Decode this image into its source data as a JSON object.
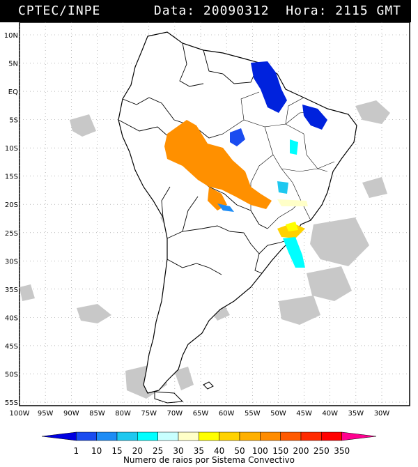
{
  "header": {
    "title": "CPTEC/INPE",
    "meta": "Data: 20090312  Hora: 2115 GMT"
  },
  "map": {
    "lat_labels": [
      "10N",
      "5N",
      "EQ",
      "5S",
      "10S",
      "15S",
      "20S",
      "25S",
      "30S",
      "35S",
      "40S",
      "45S",
      "50S",
      "55S"
    ],
    "lon_labels": [
      "100W",
      "95W",
      "90W",
      "85W",
      "80W",
      "75W",
      "70W",
      "65W",
      "60W",
      "55W",
      "50W",
      "45W",
      "40W",
      "35W",
      "30W"
    ],
    "land_color": "#ffffff",
    "cloud_color": "#c8c8c8"
  },
  "legend": {
    "values": [
      "1",
      "10",
      "15",
      "20",
      "25",
      "30",
      "35",
      "40",
      "50",
      "100",
      "150",
      "200",
      "250",
      "350"
    ],
    "colors": [
      "#0000e0",
      "#1a4cf0",
      "#1e8cf5",
      "#1ec8f0",
      "#00ffff",
      "#c8ffff",
      "#ffffc8",
      "#ffff00",
      "#ffd200",
      "#ffb000",
      "#ff8c00",
      "#ff5a00",
      "#ff2a00",
      "#ff0000",
      "#ff0090"
    ],
    "caption": "Numero de raios por Sistema Convectivo"
  }
}
